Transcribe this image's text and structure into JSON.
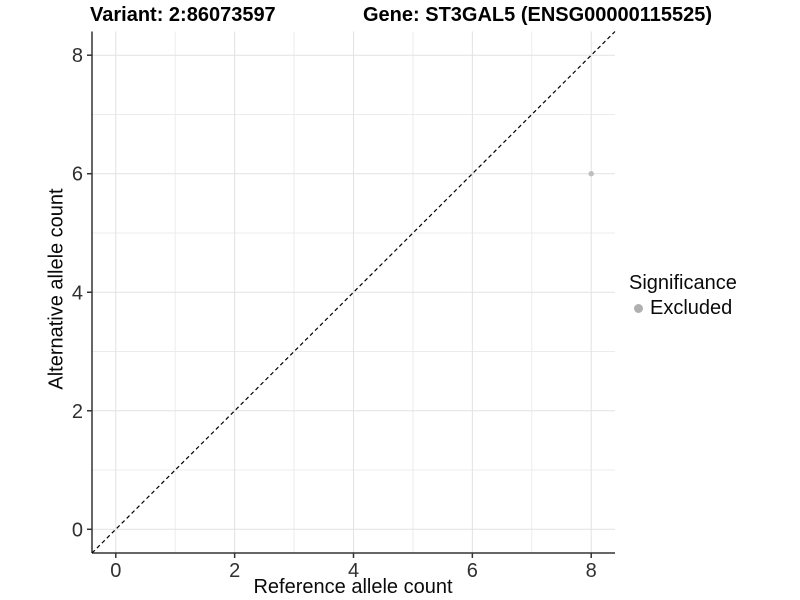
{
  "titles": {
    "variant": "Variant: 2:86073597",
    "gene": "Gene: ST3GAL5 (ENSG00000115525)"
  },
  "chart_data": {
    "type": "scatter",
    "title_left": "Variant: 2:86073597",
    "title_right": "Gene: ST3GAL5 (ENSG00000115525)",
    "xlabel": "Reference allele count",
    "ylabel": "Alternative allele count",
    "xlim": [
      -0.4,
      8.4
    ],
    "ylim": [
      -0.4,
      8.4
    ],
    "xticks": [
      0,
      2,
      4,
      6,
      8
    ],
    "yticks": [
      0,
      2,
      4,
      6,
      8
    ],
    "xminor": [
      1,
      3,
      5,
      7
    ],
    "yminor": [
      1,
      3,
      5,
      7
    ],
    "grid": true,
    "identity_line": {
      "type": "abline",
      "slope": 1,
      "intercept": 0,
      "style": "dashed",
      "color": "#000000"
    },
    "points": [
      {
        "x": 8,
        "y": 6,
        "series": "Excluded",
        "color": "#bebebe",
        "radius": 2.7
      }
    ],
    "legend": {
      "title": "Significance",
      "position": "right",
      "items": [
        {
          "label": "Excluded",
          "color": "#b0b0b0"
        }
      ]
    },
    "colors": {
      "grid_major": "#e2e2e2",
      "grid_minor": "#ececec",
      "axis_line": "#333333",
      "tick_label": "#303030",
      "background": "#ffffff"
    }
  }
}
